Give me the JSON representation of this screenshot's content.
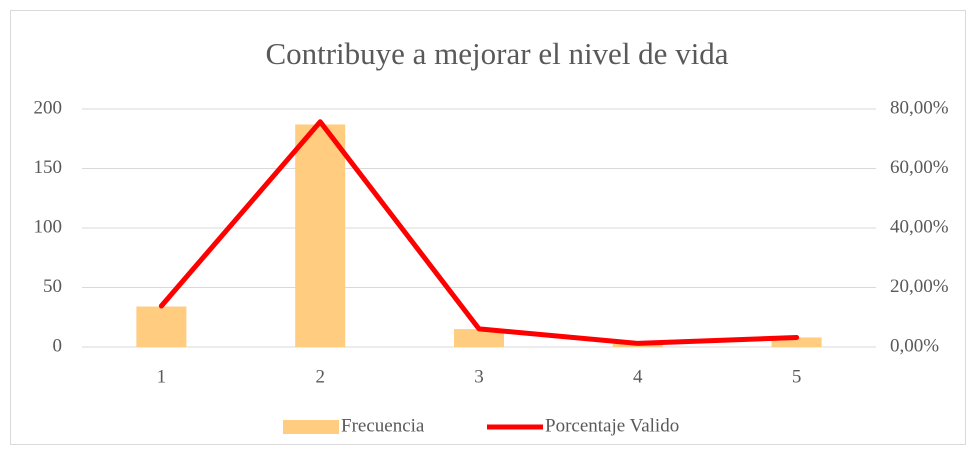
{
  "chart_data": {
    "type": "bar",
    "title": "Contribuye a mejorar el nivel de vida",
    "categories": [
      "1",
      "2",
      "3",
      "4",
      "5"
    ],
    "series": [
      {
        "name": "Frecuencia",
        "type": "bar",
        "color": "#ffcc80",
        "values": [
          34,
          187,
          15,
          3,
          8
        ]
      },
      {
        "name": "Porcentaje Valido",
        "type": "line",
        "axis": "y2",
        "color": "#ff0000",
        "values": [
          13.8,
          75.7,
          6.1,
          1.2,
          3.2
        ]
      }
    ],
    "ylim": [
      0,
      200
    ],
    "yticks": [
      0,
      50,
      100,
      150,
      200
    ],
    "y2lim": [
      0,
      80
    ],
    "y2ticks": [
      {
        "value": 0,
        "label": "0,00%"
      },
      {
        "value": 20,
        "label": "20,00%"
      },
      {
        "value": 40,
        "label": "40,00%"
      },
      {
        "value": 60,
        "label": "60,00%"
      },
      {
        "value": 80,
        "label": "80,00%"
      }
    ],
    "grid": true,
    "legend": "bottom"
  }
}
